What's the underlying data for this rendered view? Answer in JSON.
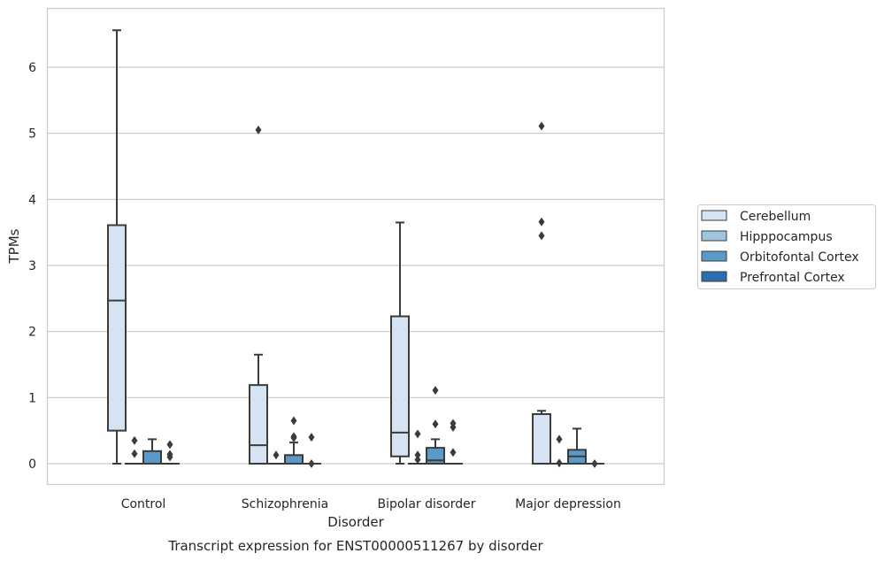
{
  "chart_data": {
    "type": "box",
    "xlabel": "Disorder",
    "ylabel": "TPMs",
    "caption": "Transcript expression for ENST00000511267 by disorder",
    "ylim": [
      -0.32,
      6.9
    ],
    "yticks": [
      0,
      1,
      2,
      3,
      4,
      5,
      6
    ],
    "grid": true,
    "legend_position": "right",
    "categories": [
      "Control",
      "Schizophrenia",
      "Bipolar disorder",
      "Major depression"
    ],
    "series": [
      {
        "name": "Cerebellum",
        "color": "#d5e4f2",
        "boxes": [
          {
            "whislo": 0,
            "q1": 0.5,
            "med": 2.47,
            "q3": 3.61,
            "whishi": 6.56,
            "fliers": []
          },
          {
            "whislo": 0,
            "q1": 0,
            "med": 0.28,
            "q3": 1.19,
            "whishi": 1.65,
            "fliers": [
              5.05
            ]
          },
          {
            "whislo": 0,
            "q1": 0.11,
            "med": 0.47,
            "q3": 2.23,
            "whishi": 3.65,
            "fliers": []
          },
          {
            "whislo": 0,
            "q1": 0,
            "med": 0,
            "q3": 0.75,
            "whishi": 0.8,
            "fliers": [
              3.45,
              3.66,
              5.11
            ]
          }
        ]
      },
      {
        "name": "Hipppocampus",
        "color": "#9ec4de",
        "boxes": [
          {
            "whislo": 0,
            "q1": 0,
            "med": 0,
            "q3": 0,
            "whishi": 0,
            "fliers": [
              0.15,
              0.35
            ]
          },
          {
            "whislo": 0,
            "q1": 0,
            "med": 0,
            "q3": 0,
            "whishi": 0,
            "fliers": [
              0.13
            ]
          },
          {
            "whislo": 0,
            "q1": 0,
            "med": 0,
            "q3": 0,
            "whishi": 0,
            "fliers": [
              0.06,
              0.13,
              0.45
            ]
          },
          {
            "whislo": 0,
            "q1": 0,
            "med": 0,
            "q3": 0,
            "whishi": 0,
            "fliers": [
              0.01,
              0.37
            ]
          }
        ]
      },
      {
        "name": "Orbitofontal Cortex",
        "color": "#5a99c8",
        "boxes": [
          {
            "whislo": 0,
            "q1": 0,
            "med": 0,
            "q3": 0.19,
            "whishi": 0.37,
            "fliers": []
          },
          {
            "whislo": 0,
            "q1": 0,
            "med": 0,
            "q3": 0.13,
            "whishi": 0.32,
            "fliers": [
              0.39,
              0.41,
              0.65
            ]
          },
          {
            "whislo": 0,
            "q1": 0,
            "med": 0.05,
            "q3": 0.24,
            "whishi": 0.37,
            "fliers": [
              0.6,
              1.11
            ]
          },
          {
            "whislo": 0,
            "q1": 0,
            "med": 0.11,
            "q3": 0.21,
            "whishi": 0.53,
            "fliers": []
          }
        ]
      },
      {
        "name": "Prefrontal Cortex",
        "color": "#2c6fb0",
        "boxes": [
          {
            "whislo": 0,
            "q1": 0,
            "med": 0,
            "q3": 0,
            "whishi": 0,
            "fliers": [
              0.1,
              0.14,
              0.29
            ]
          },
          {
            "whislo": 0,
            "q1": 0,
            "med": 0,
            "q3": 0,
            "whishi": 0,
            "fliers": [
              0,
              0.4
            ]
          },
          {
            "whislo": 0,
            "q1": 0,
            "med": 0,
            "q3": 0,
            "whishi": 0,
            "fliers": [
              0.17,
              0.55,
              0.61
            ]
          },
          {
            "whislo": 0,
            "q1": 0,
            "med": 0,
            "q3": 0,
            "whishi": 0,
            "fliers": [
              0
            ]
          }
        ]
      }
    ]
  }
}
